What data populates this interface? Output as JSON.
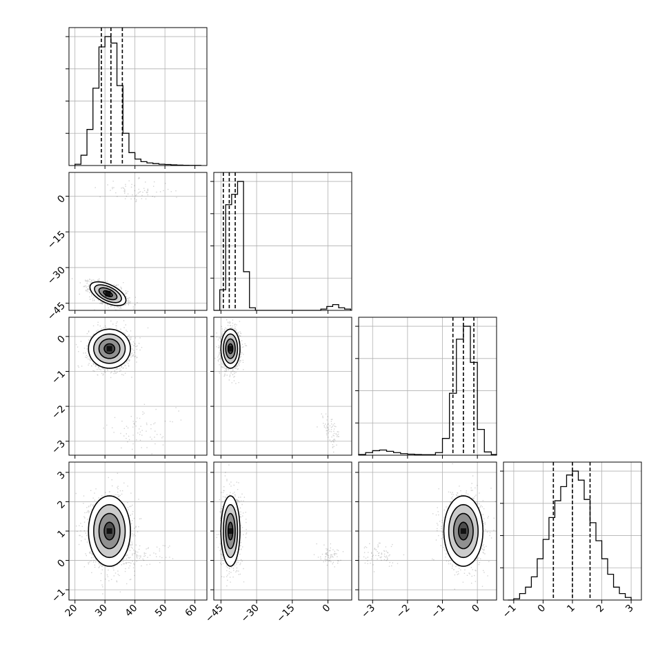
{
  "chart_data": {
    "type": "corner",
    "title": "",
    "grid": true,
    "parameters": [
      {
        "index": 0,
        "range": [
          18,
          64
        ],
        "ticks": [
          20,
          30,
          40,
          50,
          60
        ],
        "tick_labels": [
          "20",
          "30",
          "40",
          "50",
          "60"
        ]
      },
      {
        "index": 1,
        "range": [
          -48,
          10
        ],
        "ticks": [
          -45,
          -30,
          -15,
          0
        ],
        "tick_labels": [
          "−45",
          "−30",
          "−15",
          "0"
        ]
      },
      {
        "index": 2,
        "range": [
          -3.4,
          0.55
        ],
        "ticks": [
          -3,
          -2,
          -1,
          0
        ],
        "tick_labels": [
          "−3",
          "−2",
          "−1",
          "0"
        ]
      },
      {
        "index": 3,
        "range": [
          -1.35,
          3.35
        ],
        "ticks": [
          -1,
          0,
          1,
          2,
          3
        ],
        "tick_labels": [
          "−1",
          "0",
          "1",
          "2",
          "3"
        ]
      }
    ],
    "quantiles": [
      [
        28.8,
        32.0,
        35.8
      ],
      [
        -44.0,
        -41.5,
        -39.0
      ],
      [
        -0.7,
        -0.4,
        -0.1
      ],
      [
        0.35,
        1.0,
        1.6
      ]
    ],
    "histograms": [
      {
        "edges": [
          20,
          22,
          24,
          26,
          28,
          30,
          32,
          34,
          36,
          38,
          40,
          42,
          44,
          46,
          48,
          50,
          52,
          54,
          56,
          58,
          60,
          62
        ],
        "counts": [
          0.01,
          0.08,
          0.28,
          0.6,
          0.92,
          1.0,
          0.95,
          0.62,
          0.25,
          0.1,
          0.05,
          0.03,
          0.02,
          0.015,
          0.01,
          0.008,
          0.005,
          0.003,
          0.002,
          0.001,
          0.001
        ]
      },
      {
        "edges": [
          -48,
          -45.5,
          -43,
          -40.5,
          -38,
          -35.5,
          -33,
          -30.5,
          -28,
          -25.5,
          -23,
          -20.5,
          -18,
          -15.5,
          -13,
          -10.5,
          -8,
          -5.5,
          -3,
          -0.5,
          2,
          4.5,
          7,
          9.5
        ],
        "counts": [
          0.0,
          0.16,
          0.82,
          0.9,
          1.0,
          0.3,
          0.02,
          0.0,
          0.0,
          0.0,
          0.0,
          0.0,
          0.0,
          0.0,
          0.0,
          0.0,
          0.0,
          0.0,
          0.01,
          0.03,
          0.045,
          0.02,
          0.01
        ]
      },
      {
        "edges": [
          -3.4,
          -3.2,
          -3.0,
          -2.8,
          -2.6,
          -2.4,
          -2.2,
          -2.0,
          -1.8,
          -1.6,
          -1.4,
          -1.2,
          -1.0,
          -0.8,
          -0.6,
          -0.4,
          -0.2,
          0.0,
          0.2,
          0.4,
          0.55
        ],
        "counts": [
          0.005,
          0.02,
          0.035,
          0.04,
          0.03,
          0.02,
          0.012,
          0.008,
          0.005,
          0.004,
          0.004,
          0.02,
          0.13,
          0.48,
          0.9,
          1.0,
          0.72,
          0.2,
          0.025,
          0.005
        ]
      },
      {
        "edges": [
          -1.2,
          -1.0,
          -0.8,
          -0.6,
          -0.4,
          -0.2,
          0.0,
          0.2,
          0.4,
          0.6,
          0.8,
          1.0,
          1.2,
          1.4,
          1.6,
          1.8,
          2.0,
          2.2,
          2.4,
          2.6,
          2.8,
          3.0
        ],
        "counts": [
          0.0,
          0.01,
          0.05,
          0.1,
          0.18,
          0.32,
          0.47,
          0.64,
          0.77,
          0.88,
          0.97,
          1.0,
          0.93,
          0.78,
          0.6,
          0.46,
          0.32,
          0.2,
          0.1,
          0.05,
          0.02
        ]
      }
    ],
    "scatter_clusters": [
      {
        "pair": [
          0,
          1
        ],
        "main": {
          "mean": [
            31.0,
            -41.0
          ],
          "sd": [
            3.0,
            2.5
          ],
          "rho": -0.55,
          "frac": 0.95
        },
        "minor": {
          "mean": [
            40.0,
            2.5
          ],
          "sd": [
            6.0,
            2.2
          ],
          "rho": 0.0,
          "frac": 0.05
        }
      },
      {
        "pair": [
          0,
          2
        ],
        "main": {
          "mean": [
            31.5,
            -0.35
          ],
          "sd": [
            3.5,
            0.28
          ],
          "rho": 0.0,
          "frac": 0.95
        },
        "minor": {
          "mean": [
            42.0,
            -2.7
          ],
          "sd": [
            6.0,
            0.3
          ],
          "rho": 0.0,
          "frac": 0.05
        }
      },
      {
        "pair": [
          1,
          2
        ],
        "main": {
          "mean": [
            -41.0,
            -0.35
          ],
          "sd": [
            2.0,
            0.28
          ],
          "rho": 0.0,
          "frac": 0.95
        },
        "minor": {
          "mean": [
            1.0,
            -2.7
          ],
          "sd": [
            2.2,
            0.3
          ],
          "rho": -0.7,
          "frac": 0.05
        }
      },
      {
        "pair": [
          0,
          3
        ],
        "main": {
          "mean": [
            31.5,
            1.0
          ],
          "sd": [
            3.5,
            0.6
          ],
          "rho": 0.0,
          "frac": 0.95
        },
        "minor": {
          "mean": [
            42.0,
            0.2
          ],
          "sd": [
            5.0,
            0.2
          ],
          "rho": 0.0,
          "frac": 0.05
        }
      },
      {
        "pair": [
          1,
          3
        ],
        "main": {
          "mean": [
            -41.0,
            1.0
          ],
          "sd": [
            2.0,
            0.6
          ],
          "rho": 0.0,
          "frac": 0.95
        },
        "minor": {
          "mean": [
            0.5,
            0.2
          ],
          "sd": [
            2.0,
            0.2
          ],
          "rho": 0.0,
          "frac": 0.05
        }
      },
      {
        "pair": [
          2,
          3
        ],
        "main": {
          "mean": [
            -0.4,
            1.0
          ],
          "sd": [
            0.28,
            0.6
          ],
          "rho": 0.0,
          "frac": 0.95
        },
        "minor": {
          "mean": [
            -2.8,
            0.2
          ],
          "sd": [
            0.3,
            0.2
          ],
          "rho": 0.0,
          "frac": 0.05
        }
      }
    ],
    "contour_levels_sigma": [
      0.5,
      1.0,
      1.5,
      2.0
    ]
  }
}
